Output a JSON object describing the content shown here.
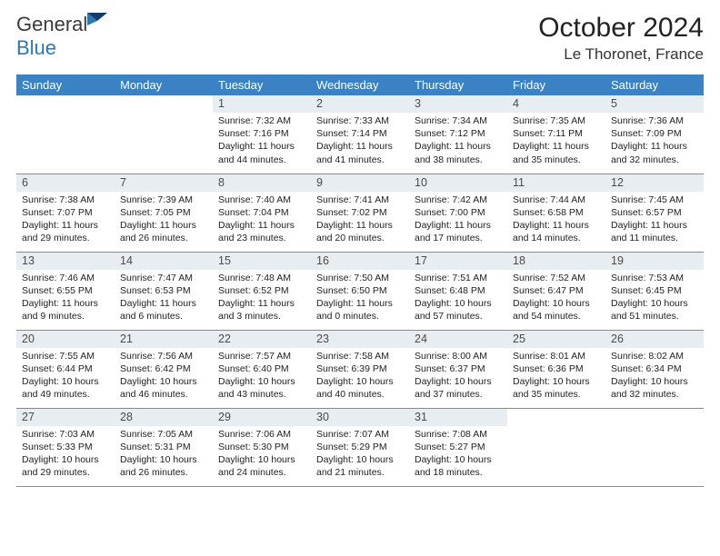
{
  "logo": {
    "part1": "General",
    "part2": "Blue"
  },
  "header": {
    "month_title": "October 2024",
    "location": "Le Thoronet, France"
  },
  "colors": {
    "header_bg": "#3a82c4",
    "header_text": "#ffffff",
    "daynum_bg": "#e8edf2",
    "row_border": "#6d91b5",
    "logo_blue": "#2a7ab0",
    "logo_dark": "#0f3d6b"
  },
  "fonts": {
    "title_size_pt": 22,
    "location_size_pt": 13,
    "header_cell_pt": 10,
    "body_pt": 8
  },
  "weekdays": [
    "Sunday",
    "Monday",
    "Tuesday",
    "Wednesday",
    "Thursday",
    "Friday",
    "Saturday"
  ],
  "weeks": [
    [
      {
        "n": "",
        "lines": [
          "",
          "",
          ""
        ]
      },
      {
        "n": "",
        "lines": [
          "",
          "",
          ""
        ]
      },
      {
        "n": "1",
        "lines": [
          "Sunrise: 7:32 AM",
          "Sunset: 7:16 PM",
          "Daylight: 11 hours and 44 minutes."
        ]
      },
      {
        "n": "2",
        "lines": [
          "Sunrise: 7:33 AM",
          "Sunset: 7:14 PM",
          "Daylight: 11 hours and 41 minutes."
        ]
      },
      {
        "n": "3",
        "lines": [
          "Sunrise: 7:34 AM",
          "Sunset: 7:12 PM",
          "Daylight: 11 hours and 38 minutes."
        ]
      },
      {
        "n": "4",
        "lines": [
          "Sunrise: 7:35 AM",
          "Sunset: 7:11 PM",
          "Daylight: 11 hours and 35 minutes."
        ]
      },
      {
        "n": "5",
        "lines": [
          "Sunrise: 7:36 AM",
          "Sunset: 7:09 PM",
          "Daylight: 11 hours and 32 minutes."
        ]
      }
    ],
    [
      {
        "n": "6",
        "lines": [
          "Sunrise: 7:38 AM",
          "Sunset: 7:07 PM",
          "Daylight: 11 hours and 29 minutes."
        ]
      },
      {
        "n": "7",
        "lines": [
          "Sunrise: 7:39 AM",
          "Sunset: 7:05 PM",
          "Daylight: 11 hours and 26 minutes."
        ]
      },
      {
        "n": "8",
        "lines": [
          "Sunrise: 7:40 AM",
          "Sunset: 7:04 PM",
          "Daylight: 11 hours and 23 minutes."
        ]
      },
      {
        "n": "9",
        "lines": [
          "Sunrise: 7:41 AM",
          "Sunset: 7:02 PM",
          "Daylight: 11 hours and 20 minutes."
        ]
      },
      {
        "n": "10",
        "lines": [
          "Sunrise: 7:42 AM",
          "Sunset: 7:00 PM",
          "Daylight: 11 hours and 17 minutes."
        ]
      },
      {
        "n": "11",
        "lines": [
          "Sunrise: 7:44 AM",
          "Sunset: 6:58 PM",
          "Daylight: 11 hours and 14 minutes."
        ]
      },
      {
        "n": "12",
        "lines": [
          "Sunrise: 7:45 AM",
          "Sunset: 6:57 PM",
          "Daylight: 11 hours and 11 minutes."
        ]
      }
    ],
    [
      {
        "n": "13",
        "lines": [
          "Sunrise: 7:46 AM",
          "Sunset: 6:55 PM",
          "Daylight: 11 hours and 9 minutes."
        ]
      },
      {
        "n": "14",
        "lines": [
          "Sunrise: 7:47 AM",
          "Sunset: 6:53 PM",
          "Daylight: 11 hours and 6 minutes."
        ]
      },
      {
        "n": "15",
        "lines": [
          "Sunrise: 7:48 AM",
          "Sunset: 6:52 PM",
          "Daylight: 11 hours and 3 minutes."
        ]
      },
      {
        "n": "16",
        "lines": [
          "Sunrise: 7:50 AM",
          "Sunset: 6:50 PM",
          "Daylight: 11 hours and 0 minutes."
        ]
      },
      {
        "n": "17",
        "lines": [
          "Sunrise: 7:51 AM",
          "Sunset: 6:48 PM",
          "Daylight: 10 hours and 57 minutes."
        ]
      },
      {
        "n": "18",
        "lines": [
          "Sunrise: 7:52 AM",
          "Sunset: 6:47 PM",
          "Daylight: 10 hours and 54 minutes."
        ]
      },
      {
        "n": "19",
        "lines": [
          "Sunrise: 7:53 AM",
          "Sunset: 6:45 PM",
          "Daylight: 10 hours and 51 minutes."
        ]
      }
    ],
    [
      {
        "n": "20",
        "lines": [
          "Sunrise: 7:55 AM",
          "Sunset: 6:44 PM",
          "Daylight: 10 hours and 49 minutes."
        ]
      },
      {
        "n": "21",
        "lines": [
          "Sunrise: 7:56 AM",
          "Sunset: 6:42 PM",
          "Daylight: 10 hours and 46 minutes."
        ]
      },
      {
        "n": "22",
        "lines": [
          "Sunrise: 7:57 AM",
          "Sunset: 6:40 PM",
          "Daylight: 10 hours and 43 minutes."
        ]
      },
      {
        "n": "23",
        "lines": [
          "Sunrise: 7:58 AM",
          "Sunset: 6:39 PM",
          "Daylight: 10 hours and 40 minutes."
        ]
      },
      {
        "n": "24",
        "lines": [
          "Sunrise: 8:00 AM",
          "Sunset: 6:37 PM",
          "Daylight: 10 hours and 37 minutes."
        ]
      },
      {
        "n": "25",
        "lines": [
          "Sunrise: 8:01 AM",
          "Sunset: 6:36 PM",
          "Daylight: 10 hours and 35 minutes."
        ]
      },
      {
        "n": "26",
        "lines": [
          "Sunrise: 8:02 AM",
          "Sunset: 6:34 PM",
          "Daylight: 10 hours and 32 minutes."
        ]
      }
    ],
    [
      {
        "n": "27",
        "lines": [
          "Sunrise: 7:03 AM",
          "Sunset: 5:33 PM",
          "Daylight: 10 hours and 29 minutes."
        ]
      },
      {
        "n": "28",
        "lines": [
          "Sunrise: 7:05 AM",
          "Sunset: 5:31 PM",
          "Daylight: 10 hours and 26 minutes."
        ]
      },
      {
        "n": "29",
        "lines": [
          "Sunrise: 7:06 AM",
          "Sunset: 5:30 PM",
          "Daylight: 10 hours and 24 minutes."
        ]
      },
      {
        "n": "30",
        "lines": [
          "Sunrise: 7:07 AM",
          "Sunset: 5:29 PM",
          "Daylight: 10 hours and 21 minutes."
        ]
      },
      {
        "n": "31",
        "lines": [
          "Sunrise: 7:08 AM",
          "Sunset: 5:27 PM",
          "Daylight: 10 hours and 18 minutes."
        ]
      },
      {
        "n": "",
        "lines": [
          "",
          "",
          ""
        ]
      },
      {
        "n": "",
        "lines": [
          "",
          "",
          ""
        ]
      }
    ]
  ]
}
